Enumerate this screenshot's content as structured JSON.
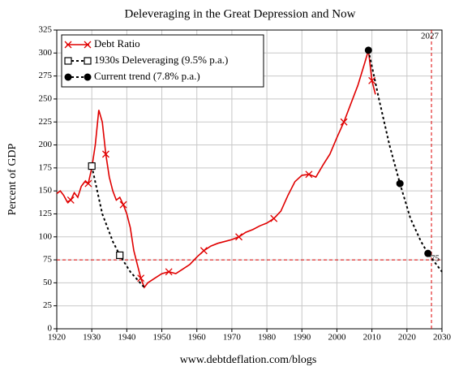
{
  "chart_data": {
    "type": "line",
    "title": "Deleveraging in the Great Depression and Now",
    "ylabel": "Percent of GDP",
    "footer": "www.debtdeflation.com/blogs",
    "xlim": [
      1920,
      2030
    ],
    "xticks": [
      1920,
      1930,
      1940,
      1950,
      1960,
      1970,
      1980,
      1990,
      2000,
      2010,
      2020,
      2030
    ],
    "ylim": [
      0,
      325
    ],
    "yticks": [
      0,
      25,
      50,
      75,
      100,
      125,
      150,
      175,
      200,
      225,
      250,
      275,
      300,
      325
    ],
    "grid": true,
    "legend": "upper left",
    "ref_vline": 2027,
    "ref_hline": 75,
    "ref_color": "#e00000",
    "series": [
      {
        "name": "Debt Ratio",
        "color": "#e00000",
        "dash": false,
        "marker": "x",
        "x": [
          1920,
          1921,
          1922,
          1923,
          1924,
          1925,
          1926,
          1927,
          1928,
          1929,
          1930,
          1931,
          1932,
          1933,
          1934,
          1935,
          1936,
          1937,
          1938,
          1939,
          1940,
          1941,
          1942,
          1943,
          1944,
          1945,
          1946,
          1948,
          1950,
          1952,
          1954,
          1956,
          1958,
          1960,
          1962,
          1964,
          1966,
          1968,
          1970,
          1972,
          1974,
          1976,
          1978,
          1980,
          1982,
          1984,
          1986,
          1988,
          1990,
          1992,
          1994,
          1996,
          1998,
          2000,
          2002,
          2004,
          2006,
          2008,
          2009,
          2010,
          2011
        ],
        "values": [
          147,
          150,
          145,
          138,
          140,
          148,
          143,
          155,
          160,
          158,
          175,
          200,
          238,
          225,
          190,
          165,
          150,
          140,
          143,
          135,
          125,
          110,
          85,
          70,
          55,
          45,
          50,
          55,
          60,
          62,
          60,
          65,
          70,
          78,
          85,
          90,
          93,
          95,
          97,
          100,
          105,
          108,
          112,
          115,
          120,
          128,
          145,
          160,
          167,
          168,
          165,
          178,
          190,
          208,
          225,
          245,
          265,
          290,
          303,
          270,
          255
        ]
      },
      {
        "name": "1930s Deleveraging (9.5% p.a.)",
        "color": "#000000",
        "dash": true,
        "marker": "square",
        "x": [
          1930,
          1933,
          1936,
          1938,
          1941,
          1945
        ],
        "values": [
          177,
          125,
          95,
          80,
          62,
          45
        ]
      },
      {
        "name": "Current trend (7.8% p.a.)",
        "color": "#000000",
        "dash": true,
        "marker": "circle",
        "x": [
          2009,
          2012,
          2015,
          2018,
          2021,
          2024,
          2026,
          2030
        ],
        "values": [
          303,
          250,
          200,
          158,
          120,
          95,
          82,
          62
        ]
      }
    ]
  }
}
